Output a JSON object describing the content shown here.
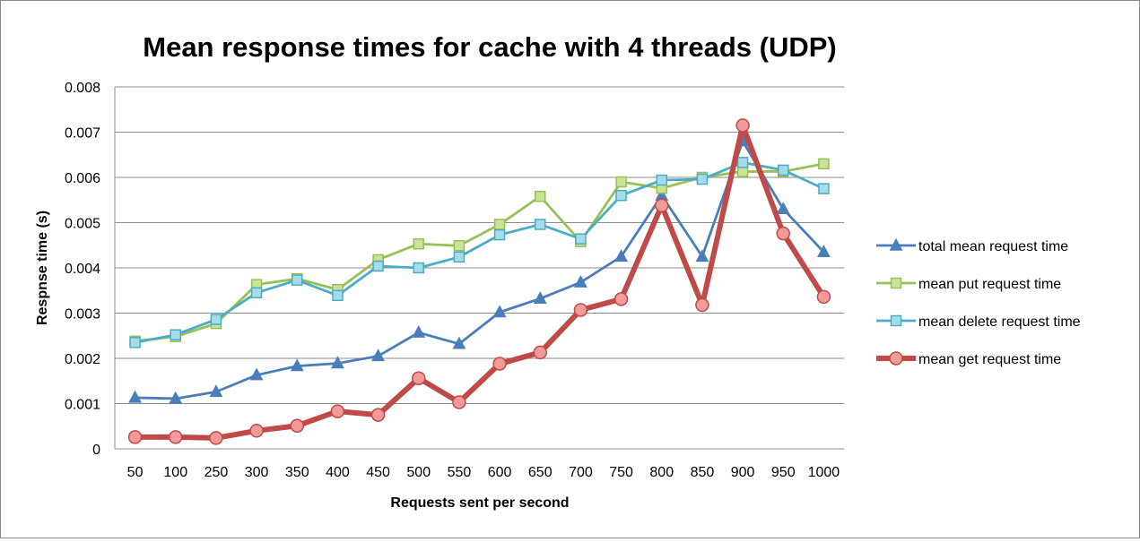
{
  "chart_data": {
    "type": "line",
    "title": "Mean response times for cache with 4 threads (UDP)",
    "xlabel": "Requests sent per second",
    "ylabel": "Respnse time (s)",
    "ylim": [
      0,
      0.008
    ],
    "yticks": [
      "0",
      "0.001",
      "0.002",
      "0.003",
      "0.004",
      "0.005",
      "0.006",
      "0.007",
      "0.008"
    ],
    "grid": true,
    "legend_position": "right",
    "categories": [
      "50",
      "100",
      "250",
      "300",
      "350",
      "400",
      "450",
      "500",
      "550",
      "600",
      "650",
      "700",
      "750",
      "800",
      "850",
      "900",
      "950",
      "1000"
    ],
    "series": [
      {
        "name": "total mean request time",
        "color": "#4a7ebb",
        "marker": "triangle",
        "values": [
          0.00113,
          0.00111,
          0.00126,
          0.00163,
          0.00183,
          0.00189,
          0.00205,
          0.00257,
          0.00232,
          0.00302,
          0.00332,
          0.00368,
          0.00425,
          0.0056,
          0.00425,
          0.0068,
          0.0053,
          0.00435
        ]
      },
      {
        "name": "mean put request time",
        "color": "#98c155",
        "marker": "square",
        "values": [
          0.00238,
          0.00248,
          0.00277,
          0.00363,
          0.00376,
          0.00352,
          0.00418,
          0.00453,
          0.00449,
          0.00496,
          0.00558,
          0.00458,
          0.0059,
          0.00576,
          0.006,
          0.00613,
          0.00613,
          0.0063
        ]
      },
      {
        "name": "mean delete request time",
        "color": "#4bacc6",
        "marker": "square",
        "values": [
          0.00235,
          0.00252,
          0.00286,
          0.00345,
          0.00373,
          0.00339,
          0.00404,
          0.004,
          0.00424,
          0.00473,
          0.00496,
          0.00464,
          0.0056,
          0.00594,
          0.00596,
          0.00633,
          0.00616,
          0.00575
        ]
      },
      {
        "name": "mean get request time",
        "color": "#be4b48",
        "marker": "circle",
        "values": [
          0.00026,
          0.00026,
          0.00024,
          0.0004,
          0.00051,
          0.00083,
          0.00075,
          0.00156,
          0.00103,
          0.00188,
          0.00213,
          0.00307,
          0.00331,
          0.00538,
          0.00318,
          0.00715,
          0.00476,
          0.00336
        ]
      }
    ]
  }
}
